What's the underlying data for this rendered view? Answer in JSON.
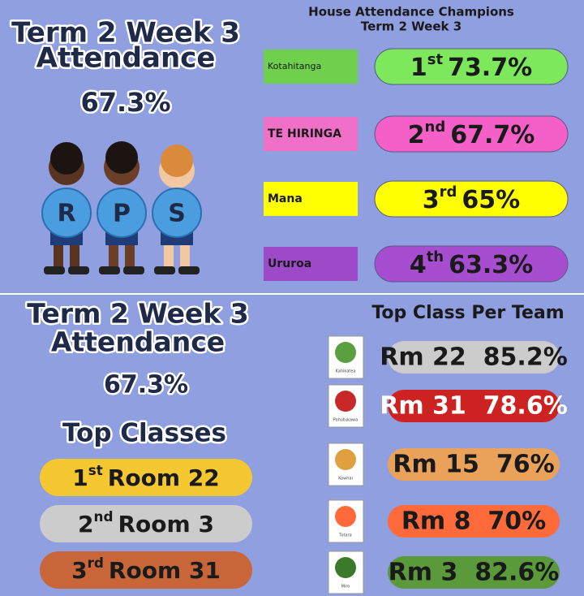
{
  "top": {
    "title_lines": [
      "Term 2 Week 3",
      "Attendance"
    ],
    "overall": "67.3%",
    "badges": [
      "R",
      "P",
      "S"
    ],
    "heading_lines": [
      "House Attendance Champions",
      "Term 2 Week 3"
    ],
    "houses": [
      {
        "house": "Kotahitanga",
        "house_color": "#6fd04e",
        "rank": "1",
        "suffix": "st",
        "percent": "73.7%",
        "color": "#7ee85c"
      },
      {
        "house": "TE HIRINGA",
        "house_color": "#f070c8",
        "rank": "2",
        "suffix": "nd",
        "percent": "67.7%",
        "color": "#f460c8"
      },
      {
        "house": "Mana",
        "house_color": "#ffff00",
        "rank": "3",
        "suffix": "rd",
        "percent": "65%",
        "color": "#ffff00"
      },
      {
        "house": "Ururoa",
        "house_color": "#9c4ac8",
        "rank": "4",
        "suffix": "th",
        "percent": "63.3%",
        "color": "#a64dd0"
      }
    ]
  },
  "bottom": {
    "title_lines": [
      "Term 2 Week 3",
      "Attendance"
    ],
    "overall": "67.3%",
    "top_classes_heading": "Top Classes",
    "top_classes": [
      {
        "rank": "1",
        "suffix": "st",
        "room": "Room 22",
        "color": "#f5c832"
      },
      {
        "rank": "2",
        "suffix": "nd",
        "room": "Room 3",
        "color": "#cccccc"
      },
      {
        "rank": "3",
        "suffix": "rd",
        "room": "Room 31",
        "color": "#c8663a"
      }
    ],
    "team_heading": "Top Class Per Team",
    "teams": [
      {
        "team": "Kahikatea",
        "icon_color": "#5aa040",
        "result": "Rm 22  85.2%",
        "color": "#cccccc",
        "text_color": "#1a1a1a"
      },
      {
        "team": "Pohutukawa",
        "icon_color": "#c82828",
        "result": "Rm 31  78.6%",
        "color": "#cc2222",
        "text_color": "#ffffff"
      },
      {
        "team": "Kowhai",
        "icon_color": "#e0a040",
        "result": "Rm 15  76%",
        "color": "#eaa25a",
        "text_color": "#1a1a1a"
      },
      {
        "team": "Totara",
        "icon_color": "#ff6a3a",
        "result": "Rm 8  70%",
        "color": "#ff6a3a",
        "text_color": "#1a1a1a"
      },
      {
        "team": "Miro",
        "icon_color": "#3a7a2a",
        "result": "Rm 3  82.6%",
        "color": "#5a9a3a",
        "text_color": "#1a1a1a"
      }
    ]
  }
}
